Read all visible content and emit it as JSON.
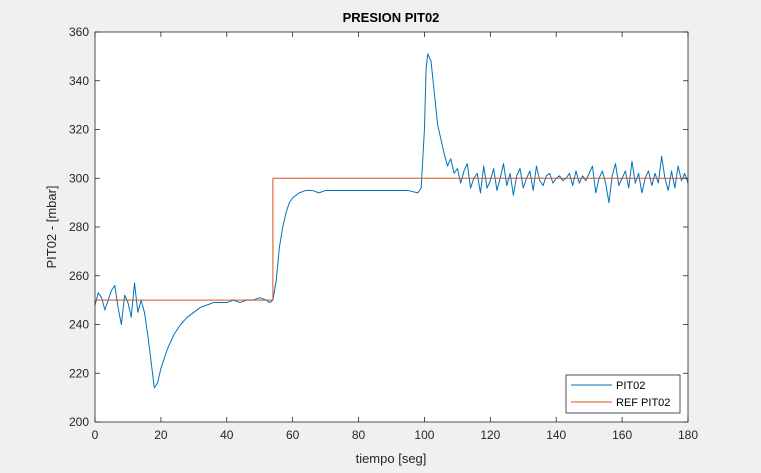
{
  "chart_data": {
    "type": "line",
    "title": "PRESION PIT02",
    "xlabel": "tiempo [seg]",
    "ylabel": "PIT02 - [mbar]",
    "xlim": [
      0,
      180
    ],
    "ylim": [
      200,
      360
    ],
    "xticks": [
      0,
      20,
      40,
      60,
      80,
      100,
      120,
      140,
      160,
      180
    ],
    "yticks": [
      200,
      220,
      240,
      260,
      280,
      300,
      320,
      340,
      360
    ],
    "grid": false,
    "legend_position": "bottom-right",
    "series": [
      {
        "name": "PIT02",
        "color": "#0072BD",
        "x": [
          0,
          1,
          2,
          3,
          4,
          5,
          6,
          7,
          8,
          9,
          10,
          11,
          12,
          13,
          14,
          15,
          16,
          17,
          18,
          19,
          20,
          22,
          24,
          26,
          28,
          30,
          32,
          34,
          36,
          38,
          40,
          42,
          44,
          46,
          48,
          50,
          52,
          53,
          54,
          55,
          56,
          57,
          58,
          59,
          60,
          62,
          64,
          66,
          68,
          70,
          75,
          80,
          85,
          90,
          95,
          98,
          99,
          100,
          100.5,
          101,
          102,
          103,
          104,
          105,
          106,
          107,
          108,
          109,
          110,
          111,
          112,
          113,
          114,
          115,
          116,
          117,
          118,
          119,
          120,
          121,
          122,
          123,
          124,
          125,
          126,
          127,
          128,
          129,
          130,
          131,
          132,
          133,
          134,
          135,
          136,
          137,
          138,
          139,
          140,
          141,
          142,
          143,
          144,
          145,
          146,
          147,
          148,
          149,
          150,
          151,
          152,
          153,
          154,
          155,
          156,
          157,
          158,
          159,
          160,
          161,
          162,
          163,
          164,
          165,
          166,
          167,
          168,
          169,
          170,
          171,
          172,
          173,
          174,
          175,
          176,
          177,
          178,
          179,
          180
        ],
        "y": [
          248,
          253,
          251,
          246,
          250,
          254,
          256,
          247,
          240,
          252,
          249,
          243,
          257,
          245,
          250,
          245,
          236,
          225,
          214,
          216,
          222,
          230,
          236,
          240,
          243,
          245,
          247,
          248,
          249,
          249,
          249,
          250,
          249,
          250,
          250,
          251,
          250,
          249,
          250,
          258,
          272,
          280,
          286,
          290,
          292,
          294,
          295,
          295,
          294,
          295,
          295,
          295,
          295,
          295,
          295,
          294,
          296,
          320,
          345,
          351,
          348,
          335,
          322,
          316,
          310,
          305,
          308,
          302,
          304,
          298,
          303,
          306,
          296,
          300,
          302,
          294,
          305,
          296,
          299,
          304,
          295,
          300,
          306,
          297,
          302,
          293,
          301,
          304,
          296,
          300,
          303,
          295,
          305,
          299,
          297,
          301,
          302,
          298,
          300,
          301,
          299,
          300,
          302,
          297,
          303,
          298,
          301,
          299,
          302,
          305,
          294,
          300,
          303,
          298,
          290,
          301,
          306,
          297,
          300,
          303,
          296,
          307,
          298,
          302,
          294,
          300,
          303,
          297,
          302,
          298,
          309,
          300,
          295,
          303,
          296,
          305,
          299,
          302,
          298
        ]
      },
      {
        "name": "REF PIT02",
        "color": "#D95319",
        "x": [
          0,
          54,
          54,
          180
        ],
        "y": [
          250,
          250,
          300,
          300
        ]
      }
    ]
  }
}
